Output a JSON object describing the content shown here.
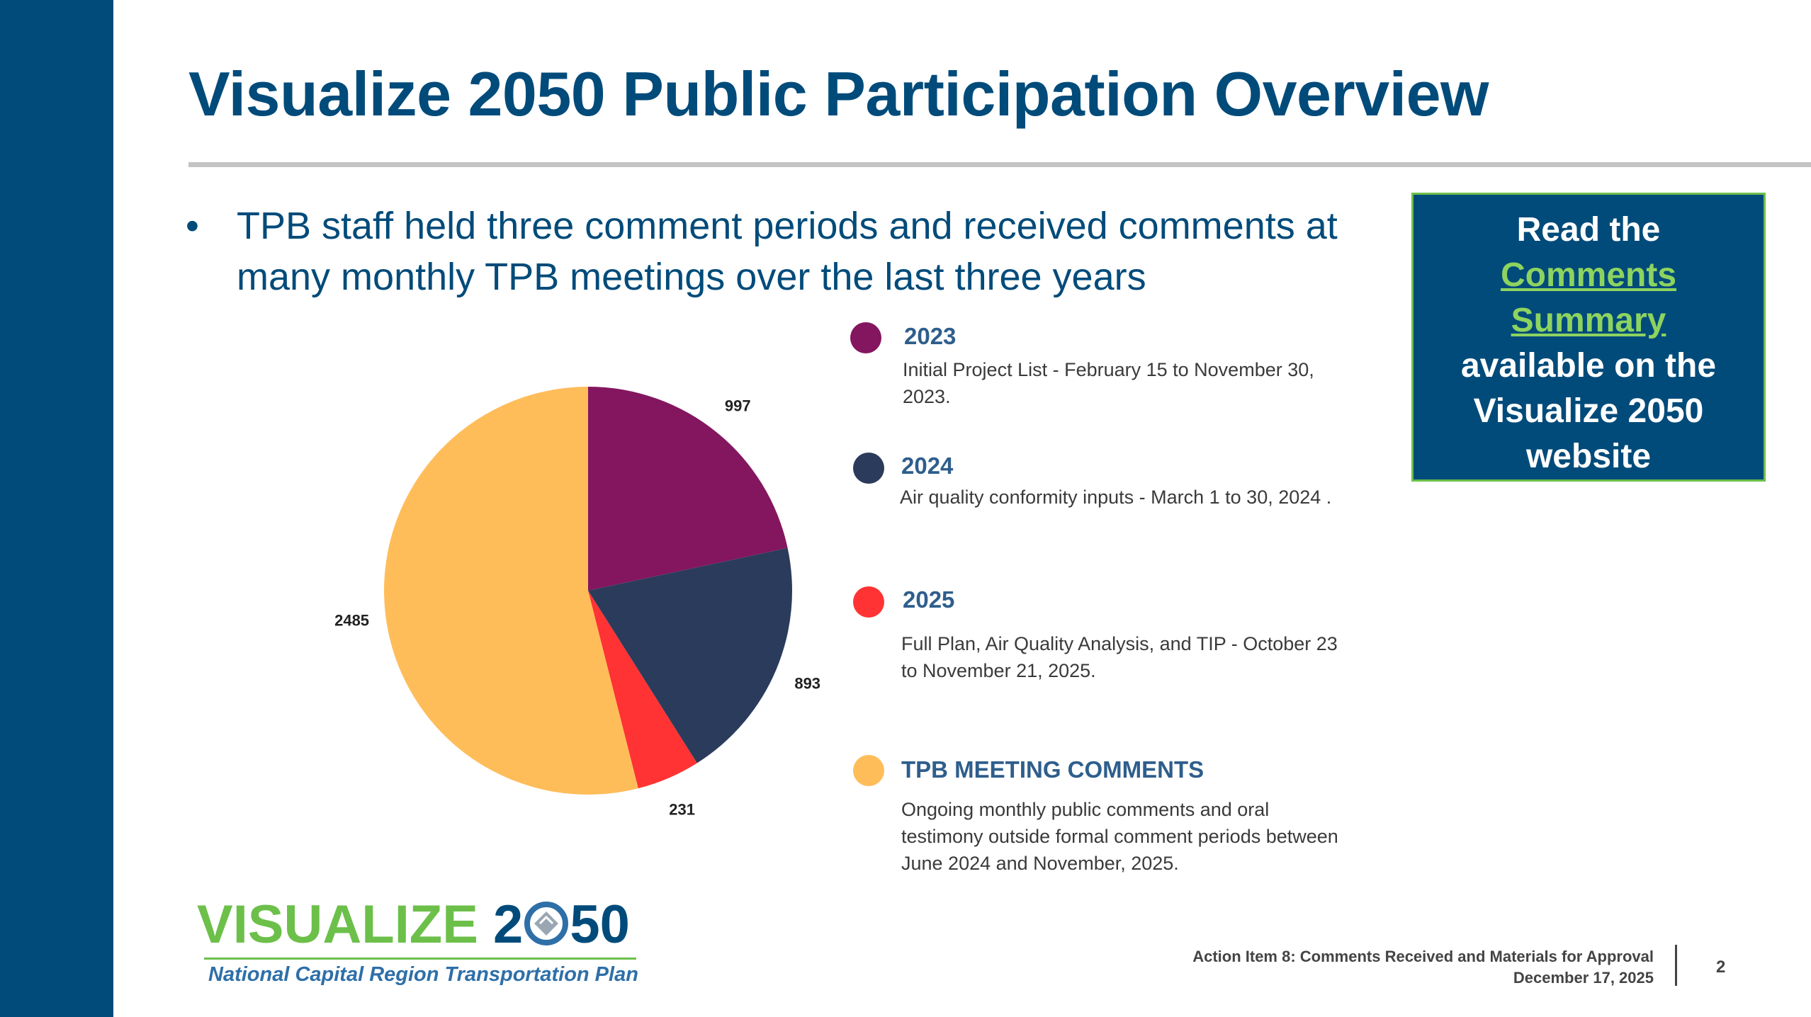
{
  "slide": {
    "title": "Visualize 2050 Public Participation Overview",
    "bullet_marker": "•",
    "bullet": "TPB staff held three comment periods and received comments at many monthly TPB meetings over the last three years"
  },
  "callout": {
    "line1": "Read the",
    "link1": "Comments",
    "link2": "Summary",
    "line2": "available on the",
    "line3": "Visualize 2050",
    "line4": "website"
  },
  "colors": {
    "brand": "#004b7a",
    "green": "#6cc04a",
    "c2023": "#83165f",
    "c2024": "#2b3b5c",
    "c2025": "#ff3333",
    "cmeeting": "#ffbd5a"
  },
  "chart_data": {
    "type": "pie",
    "title": "",
    "slices": [
      {
        "name": "2023",
        "value": 997,
        "label": "997",
        "color": "#83165f"
      },
      {
        "name": "2024",
        "value": 893,
        "label": "893",
        "color": "#2b3b5c"
      },
      {
        "name": "2025",
        "value": 231,
        "label": "231",
        "color": "#ff3333"
      },
      {
        "name": "TPB MEETING COMMENTS",
        "value": 2485,
        "label": "2485",
        "color": "#ffbd5a"
      }
    ],
    "legend_placement": "right"
  },
  "legend": [
    {
      "year": "2023",
      "desc": "Initial Project List - February 15 to November 30, 2023.",
      "color": "#83165f"
    },
    {
      "year": "2024",
      "desc": "Air quality conformity inputs - March 1 to 30, 2024 .",
      "color": "#2b3b5c"
    },
    {
      "year": "2025",
      "desc": "Full Plan, Air Quality Analysis, and TIP - October 23 to November 21, 2025.",
      "color": "#ff3333"
    },
    {
      "year": "TPB MEETING COMMENTS",
      "desc": "Ongoing monthly public comments and oral testimony outside formal comment periods between June 2024  and November, 2025.",
      "color": "#ffbd5a"
    }
  ],
  "logo": {
    "word1": "VISUALIZE",
    "num_a": "2",
    "num_b": "50",
    "subtitle": "National Capital Region Transportation Plan"
  },
  "footer": {
    "line1": "Action Item 8: Comments Received and Materials for Approval",
    "line2": "December 17, 2025",
    "page": "2"
  }
}
